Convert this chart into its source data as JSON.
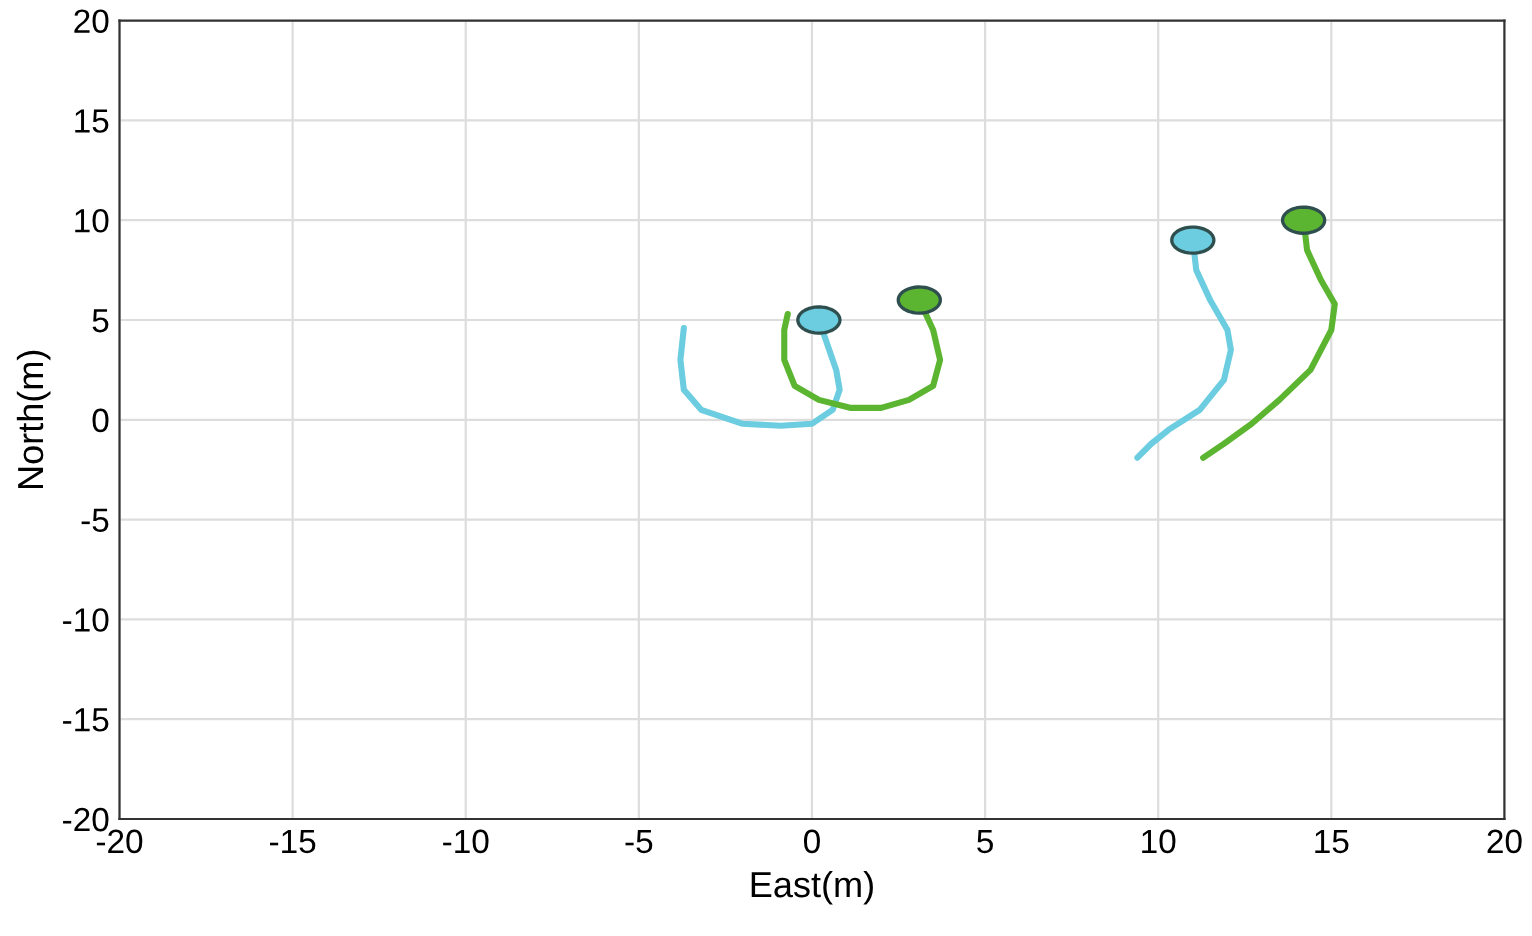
{
  "chart_data": {
    "type": "line",
    "xlabel": "East(m)",
    "ylabel": "North(m)",
    "xlim": [
      -20,
      20
    ],
    "ylim": [
      -20,
      20
    ],
    "xticks": [
      -20,
      -15,
      -10,
      -5,
      0,
      5,
      10,
      15,
      20
    ],
    "yticks": [
      -20,
      -15,
      -10,
      -5,
      0,
      5,
      10,
      15,
      20
    ],
    "grid": true,
    "legend": false,
    "line_style": "solid",
    "series": [
      {
        "color": "#6ccde0",
        "x": [
          0.2,
          0.4,
          0.7,
          0.8,
          0.6,
          0,
          -0.9,
          -2,
          -3.2,
          -3.7,
          -3.8,
          -3.7
        ],
        "values": [
          5,
          4,
          2.5,
          1.5,
          0.5,
          -0.2,
          -0.3,
          -0.2,
          0.5,
          1.5,
          3,
          4.6
        ]
      },
      {
        "color": "#5cb531",
        "x": [
          3.1,
          3.5,
          3.7,
          3.5,
          2.8,
          2,
          1.1,
          0.2,
          -0.5,
          -0.8,
          -0.8,
          -0.7
        ],
        "values": [
          6,
          4.5,
          3,
          1.7,
          1,
          0.6,
          0.6,
          1,
          1.7,
          3,
          4.5,
          5.3
        ]
      },
      {
        "color": "#6ccde0",
        "x": [
          11,
          11.1,
          11.5,
          12,
          12.1,
          11.9,
          11.2,
          10.3,
          9.8,
          9.4
        ],
        "values": [
          9,
          7.5,
          6,
          4.5,
          3.5,
          2,
          0.5,
          -0.5,
          -1.2,
          -1.9
        ]
      },
      {
        "color": "#5cb531",
        "x": [
          14.2,
          14.3,
          14.7,
          15.1,
          15,
          14.4,
          13.5,
          12.7,
          11.9,
          11.3
        ],
        "values": [
          10,
          8.5,
          7,
          5.8,
          4.5,
          2.5,
          1,
          -0.2,
          -1.2,
          -1.9
        ]
      },
      {
        "type": "scatter",
        "marker": "circle",
        "color": "#6ccde0",
        "x": [
          0.2,
          11
        ],
        "values": [
          5,
          9
        ]
      },
      {
        "type": "scatter",
        "marker": "circle",
        "color": "#5cb531",
        "x": [
          3.1,
          14.2
        ],
        "values": [
          6,
          10
        ]
      }
    ]
  }
}
